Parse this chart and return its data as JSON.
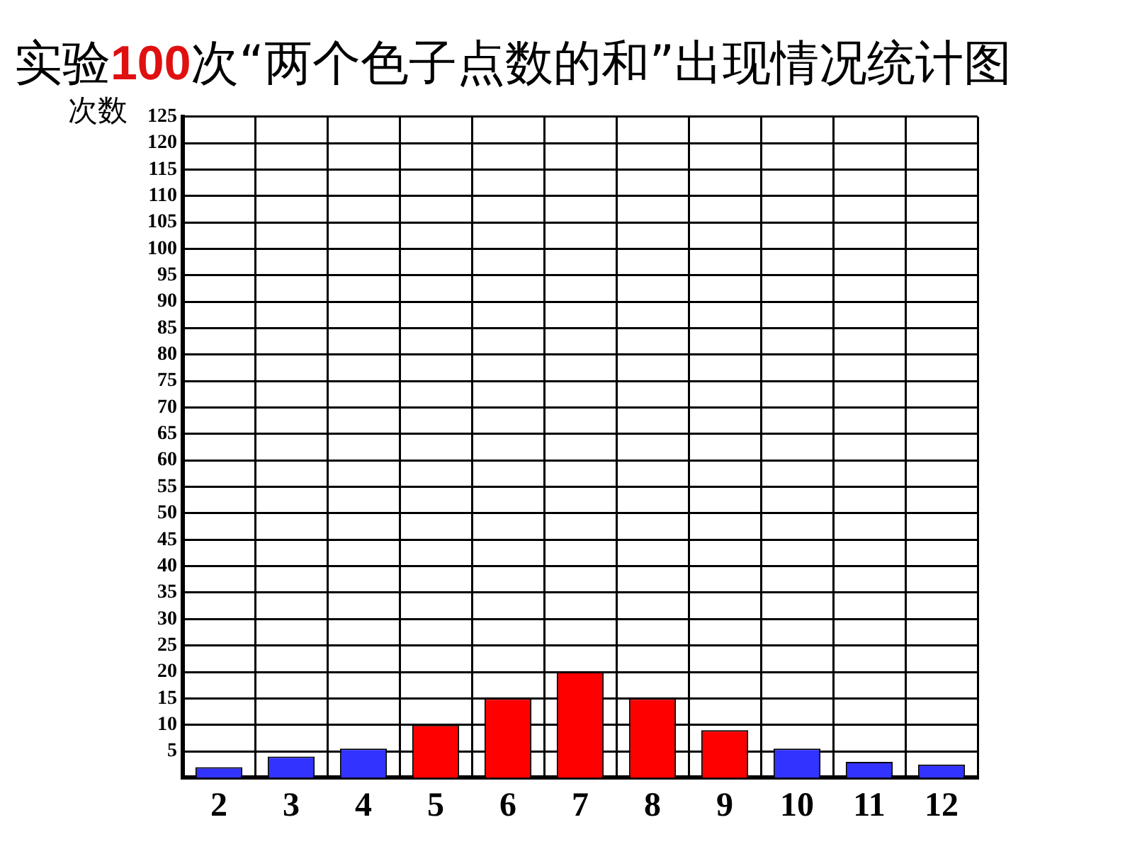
{
  "chart_data": {
    "type": "bar",
    "title": "实验100次“两个色子点数的和”出现情况统计图",
    "ylabel": "次数",
    "categories": [
      "2",
      "3",
      "4",
      "5",
      "6",
      "7",
      "8",
      "9",
      "10",
      "11",
      "12"
    ],
    "values": [
      2,
      4,
      5.5,
      10,
      15,
      20,
      15,
      9,
      5.5,
      3,
      2.5
    ],
    "colors": [
      "#3333ff",
      "#3333ff",
      "#3333ff",
      "#ff0000",
      "#ff0000",
      "#ff0000",
      "#ff0000",
      "#ff0000",
      "#3333ff",
      "#3333ff",
      "#3333ff"
    ],
    "ylim": [
      0,
      125
    ],
    "yticks": [
      5,
      10,
      15,
      20,
      25,
      30,
      35,
      40,
      45,
      50,
      55,
      60,
      65,
      70,
      75,
      80,
      85,
      90,
      95,
      100,
      105,
      110,
      115,
      120,
      125
    ],
    "grid": true,
    "legend": false
  }
}
